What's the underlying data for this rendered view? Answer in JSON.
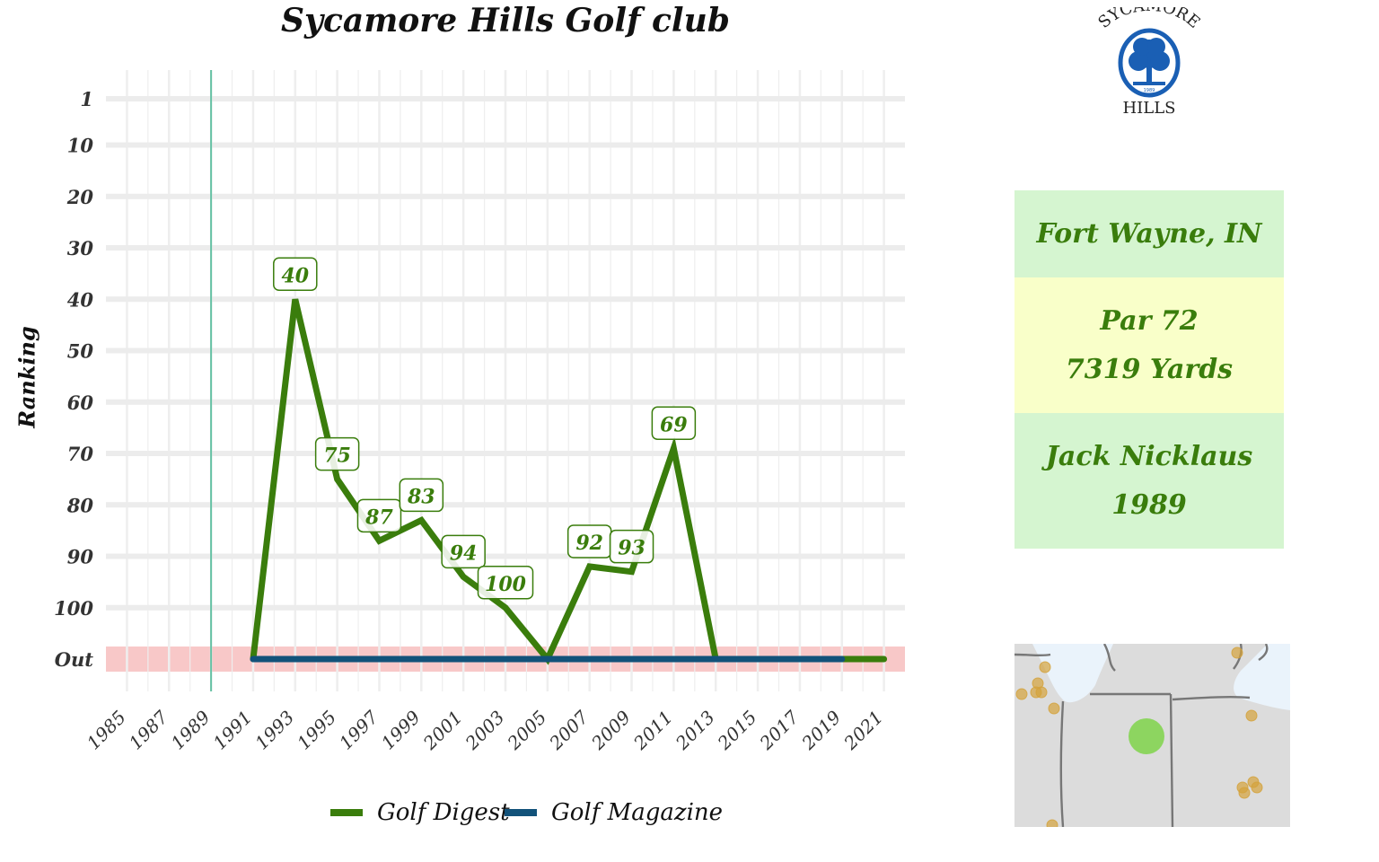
{
  "chart_data": {
    "type": "line",
    "title": "Sycamore Hills Golf club",
    "ylabel": "Ranking",
    "xlabel": "",
    "x_ticks": [
      1985,
      1987,
      1989,
      1991,
      1993,
      1995,
      1997,
      1999,
      2001,
      2003,
      2005,
      2007,
      2009,
      2011,
      2013,
      2015,
      2017,
      2019,
      2021
    ],
    "y_ticks": [
      "1",
      "10",
      "20",
      "30",
      "40",
      "50",
      "60",
      "70",
      "80",
      "90",
      "100",
      "Out"
    ],
    "xlim": [
      1984,
      2022
    ],
    "ylim": [
      1,
      110
    ],
    "out_value": 110,
    "out_band_color": "#f8c8c8",
    "reference_line": {
      "x": 1989,
      "color": "#66c2a5"
    },
    "grid": true,
    "legend_position": "bottom",
    "series": [
      {
        "name": "Golf Digest",
        "color": "#3a7d0c",
        "points": [
          {
            "x": 1991,
            "y": "Out"
          },
          {
            "x": 1993,
            "y": 40
          },
          {
            "x": 1995,
            "y": 75
          },
          {
            "x": 1997,
            "y": 87
          },
          {
            "x": 1999,
            "y": 83
          },
          {
            "x": 2001,
            "y": 94
          },
          {
            "x": 2003,
            "y": 100
          },
          {
            "x": 2005,
            "y": "Out"
          },
          {
            "x": 2007,
            "y": 92
          },
          {
            "x": 2009,
            "y": 93
          },
          {
            "x": 2011,
            "y": 69
          },
          {
            "x": 2013,
            "y": "Out"
          },
          {
            "x": 2015,
            "y": "Out"
          },
          {
            "x": 2017,
            "y": "Out"
          },
          {
            "x": 2019,
            "y": "Out"
          },
          {
            "x": 2021,
            "y": "Out"
          }
        ]
      },
      {
        "name": "Golf Magazine",
        "color": "#12527a",
        "points": [
          {
            "x": 1991,
            "y": "Out"
          },
          {
            "x": 1993,
            "y": "Out"
          },
          {
            "x": 1995,
            "y": "Out"
          },
          {
            "x": 1997,
            "y": "Out"
          },
          {
            "x": 1999,
            "y": "Out"
          },
          {
            "x": 2001,
            "y": "Out"
          },
          {
            "x": 2003,
            "y": "Out"
          },
          {
            "x": 2005,
            "y": "Out"
          },
          {
            "x": 2007,
            "y": "Out"
          },
          {
            "x": 2009,
            "y": "Out"
          },
          {
            "x": 2011,
            "y": "Out"
          },
          {
            "x": 2013,
            "y": "Out"
          },
          {
            "x": 2015,
            "y": "Out"
          },
          {
            "x": 2017,
            "y": "Out"
          },
          {
            "x": 2019,
            "y": "Out"
          }
        ]
      }
    ]
  },
  "info": {
    "location": "Fort Wayne, IN",
    "par": "Par 72",
    "yards": "7319 Yards",
    "architect": "Jack Nicklaus",
    "year": "1989",
    "location_bg": "#d5f5d0",
    "course_bg": "#f9ffc9",
    "architect_bg": "#d5f5d0"
  },
  "logo": {
    "top_text": "SYCAMORE",
    "bottom_text": "HILLS",
    "year_text": "1989",
    "color": "#1a5fb4"
  },
  "minimap": {
    "land_color": "#dcdcdc",
    "water_color": "#eaf3fb",
    "highlight_color": "#7fd44a",
    "other_courses_color": "#d4a23c"
  }
}
